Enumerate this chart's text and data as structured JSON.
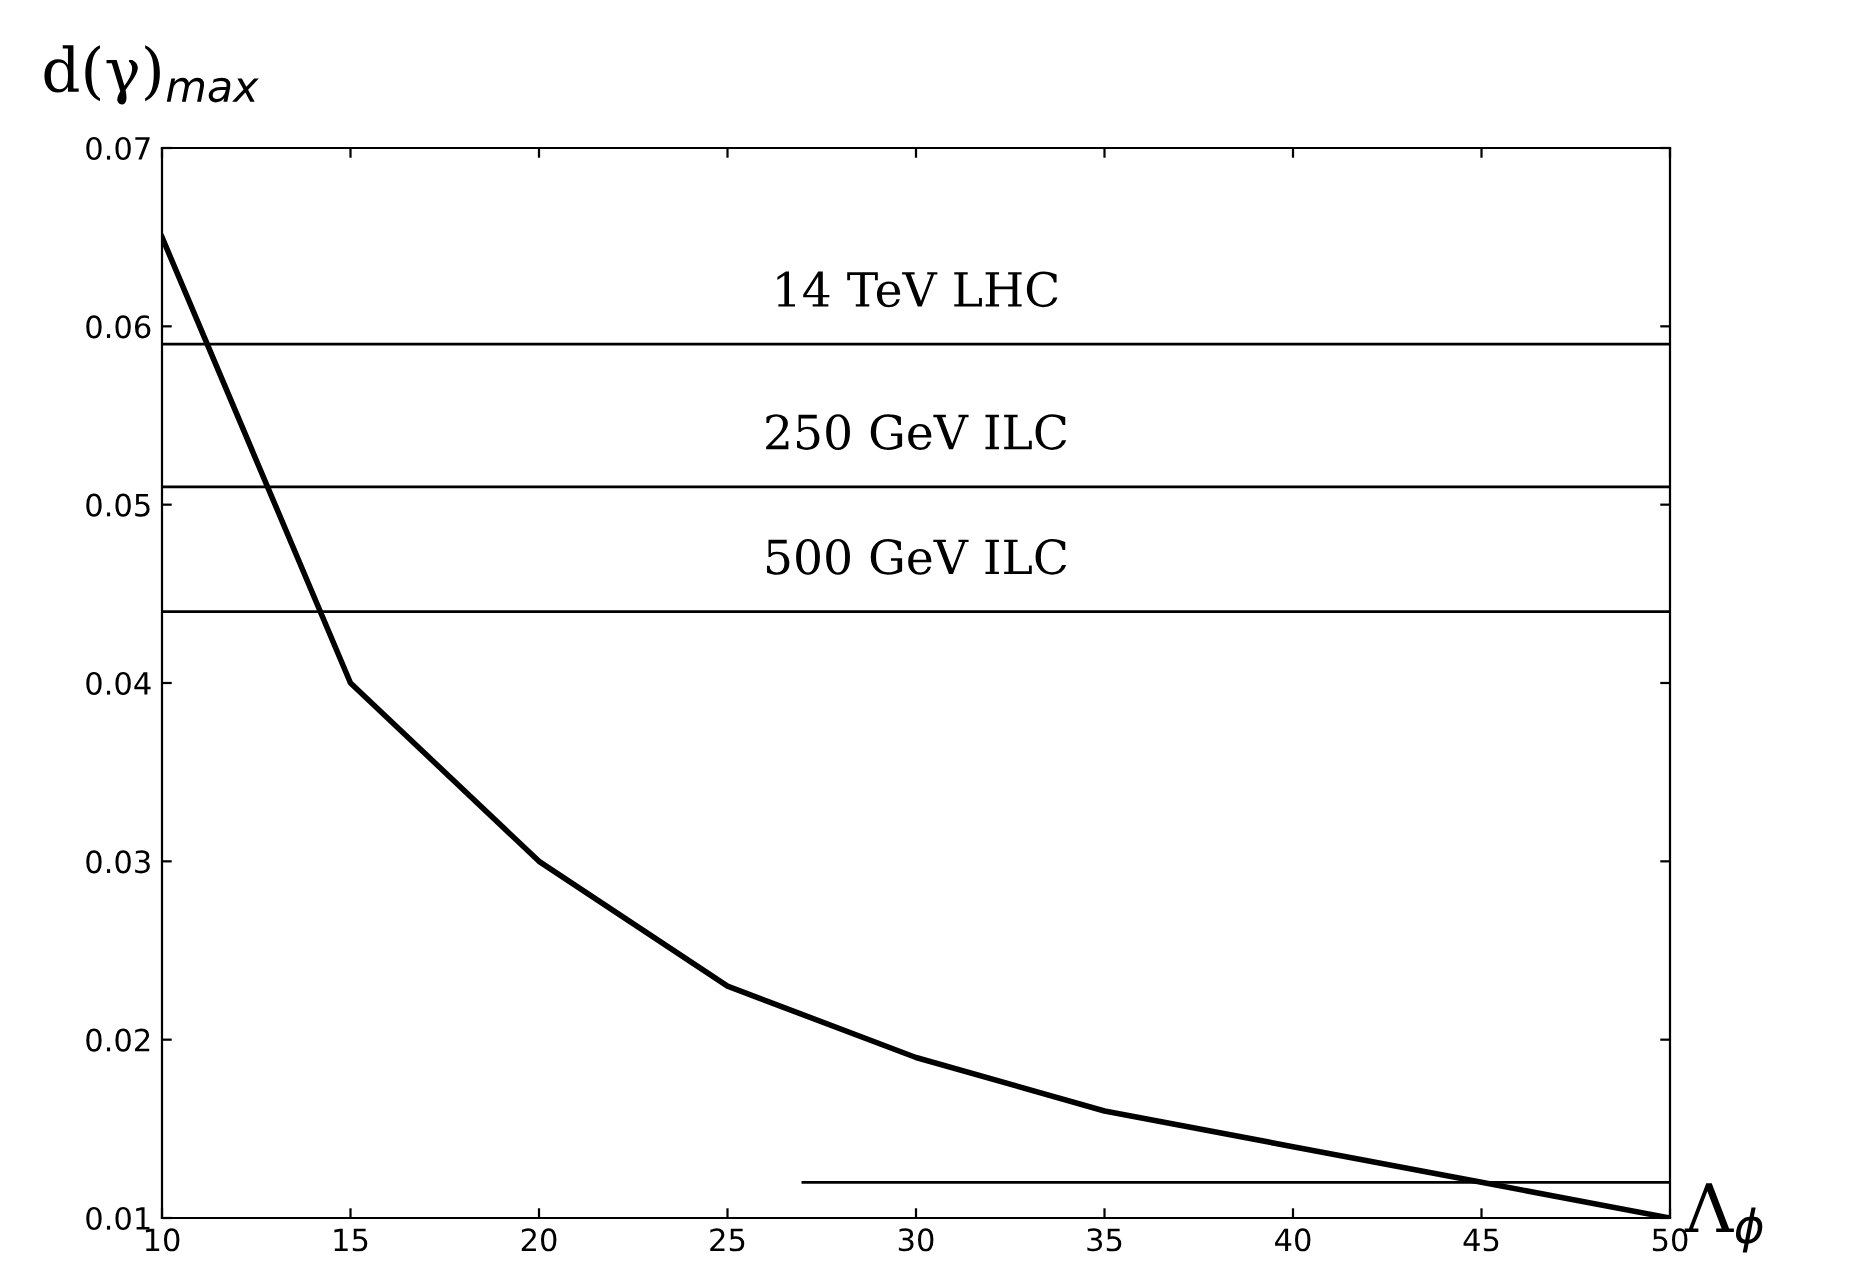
{
  "chart_data": {
    "type": "line",
    "xlabel": "Λ$_{ϕ}$",
    "ylabel": "d(γ)$_{max}$",
    "x": [
      10,
      15,
      20,
      25,
      30,
      35,
      40,
      45,
      50
    ],
    "series": [
      {
        "color": "#000000",
        "values": [
          0.065,
          0.04,
          0.03,
          0.023,
          0.019,
          0.016,
          0.014,
          0.012,
          0.01
        ]
      },
      {
        "type": "line",
        "color": "#000000",
        "x": [
          27,
          50
        ],
        "values": [
          0.012,
          0.012
        ]
      }
    ],
    "ref_lines": [
      {
        "axis": "y",
        "value": 0.059,
        "label": "14 TeV LHC",
        "color": "#000000"
      },
      {
        "axis": "y",
        "value": 0.051,
        "label": "250 GeV ILC",
        "color": "#000000"
      },
      {
        "axis": "y",
        "value": 0.044,
        "label": "500 GeV ILC",
        "color": "#000000"
      }
    ],
    "xlim": [
      10,
      50
    ],
    "ylim": [
      0.01,
      0.07
    ],
    "xticks": [
      10,
      15,
      20,
      25,
      30,
      35,
      40,
      45,
      50
    ],
    "yticks": [
      {
        "value": 0.01,
        "label": "0.01"
      },
      {
        "value": 0.02,
        "label": "0.02"
      },
      {
        "value": 0.03,
        "label": "0.03"
      },
      {
        "value": 0.04,
        "label": "0.04"
      },
      {
        "value": 0.05,
        "label": "0.05"
      },
      {
        "value": 0.06,
        "label": "0.06"
      },
      {
        "value": 0.07,
        "label": "0.07"
      }
    ],
    "grid": false,
    "legend": false,
    "line_style": "solid",
    "marker": "none"
  }
}
